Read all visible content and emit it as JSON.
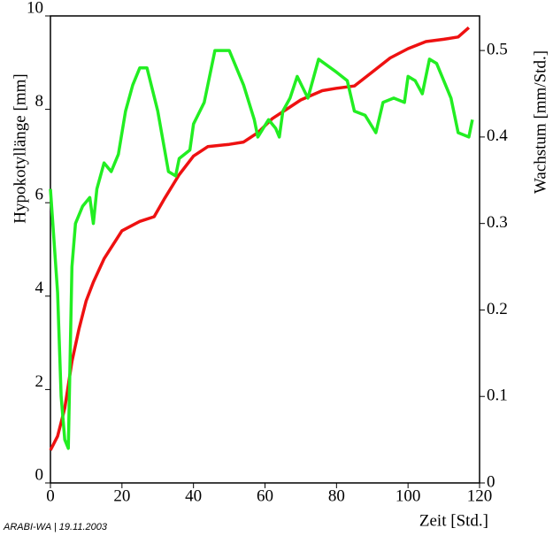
{
  "chart_data": {
    "type": "line",
    "x_label": "Zeit [Std.]",
    "y_label": "Hypokotyllänge [mm]",
    "y2_label": "Wachstum [mm/Std.]",
    "annotation": "ARABI-WA | 19.11.2003",
    "xlim": [
      0,
      120
    ],
    "xticks": [
      0,
      20,
      40,
      60,
      80,
      100,
      120
    ],
    "ylim": [
      0,
      10
    ],
    "yticks": [
      0,
      2,
      4,
      6,
      8,
      10
    ],
    "y2lim": [
      0,
      0.54
    ],
    "y2ticks": [
      0,
      0.1,
      0.2,
      0.3,
      0.4,
      0.5
    ],
    "series": [
      {
        "name": "Hypokotyllänge",
        "color": "#ee1111",
        "x": [
          0,
          2,
          4,
          6,
          8,
          10,
          12,
          15,
          20,
          25,
          29,
          32,
          36,
          40,
          44,
          50,
          54,
          58,
          62,
          66,
          70,
          76,
          80,
          85,
          90,
          95,
          100,
          105,
          110,
          114,
          117
        ],
        "values": [
          0.7,
          1.0,
          1.6,
          2.6,
          3.3,
          3.9,
          4.3,
          4.8,
          5.4,
          5.6,
          5.7,
          6.1,
          6.6,
          7.0,
          7.2,
          7.25,
          7.3,
          7.5,
          7.8,
          8.0,
          8.2,
          8.4,
          8.45,
          8.5,
          8.8,
          9.1,
          9.3,
          9.45,
          9.5,
          9.55,
          9.75
        ]
      },
      {
        "name": "Wachstum",
        "color": "#22ee22",
        "axis": "y2",
        "x": [
          0,
          2,
          3,
          4,
          5,
          6,
          7,
          9,
          11,
          12,
          13,
          15,
          17,
          19,
          21,
          23,
          25,
          27,
          30,
          33,
          35,
          36,
          39,
          40,
          43,
          46,
          50,
          54,
          57,
          58,
          61,
          63,
          64,
          65,
          67,
          69,
          72,
          75,
          80,
          83,
          85,
          88,
          91,
          93,
          96,
          99,
          100,
          102,
          104,
          106,
          108,
          112,
          114,
          117,
          118
        ],
        "values": [
          0.34,
          0.22,
          0.1,
          0.05,
          0.04,
          0.25,
          0.3,
          0.32,
          0.33,
          0.3,
          0.34,
          0.37,
          0.36,
          0.38,
          0.43,
          0.46,
          0.48,
          0.48,
          0.43,
          0.36,
          0.355,
          0.375,
          0.385,
          0.415,
          0.44,
          0.5,
          0.5,
          0.46,
          0.42,
          0.4,
          0.42,
          0.41,
          0.4,
          0.43,
          0.445,
          0.47,
          0.445,
          0.49,
          0.475,
          0.465,
          0.43,
          0.425,
          0.405,
          0.44,
          0.445,
          0.44,
          0.47,
          0.465,
          0.45,
          0.49,
          0.485,
          0.445,
          0.405,
          0.4,
          0.42
        ]
      }
    ]
  }
}
